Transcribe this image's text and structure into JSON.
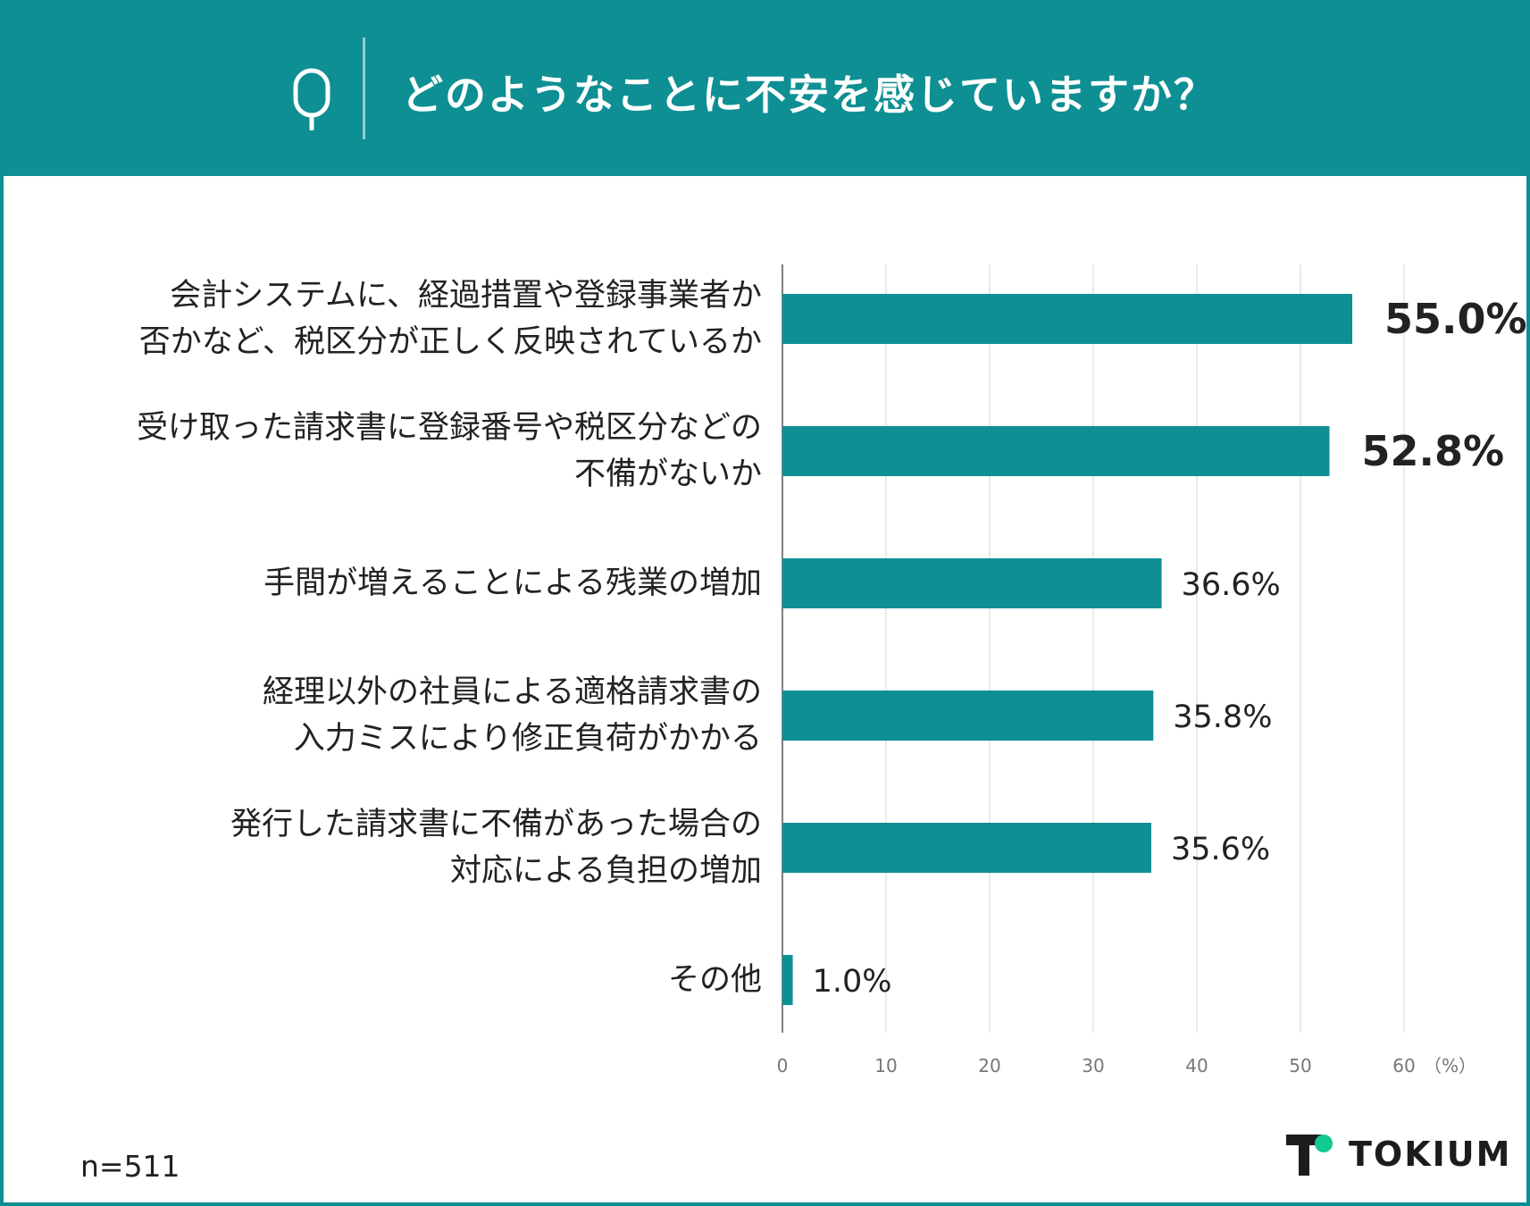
{
  "header": {
    "q_label": "Q",
    "title": "どのようなことに不安を感じていますか？"
  },
  "chart_data": {
    "type": "bar",
    "orientation": "horizontal",
    "categories": [
      "会計システムに、経過措置や登録事業者か\n否かなど、税区分が正しく反映されているか",
      "受け取った請求書に登録番号や税区分などの\n不備がないか",
      "手間が増えることによる残業の増加",
      "経理以外の社員による適格請求書の\n入力ミスにより修正負荷がかかる",
      "発行した請求書に不備があった場合の\n対応による負担の増加",
      "その他"
    ],
    "values": [
      55.0,
      52.8,
      36.6,
      35.8,
      35.6,
      1.0
    ],
    "value_labels": [
      "55.0%",
      "52.8%",
      "36.6%",
      "35.8%",
      "35.6%",
      "1.0%"
    ],
    "highlighted": [
      true,
      true,
      false,
      false,
      false,
      false
    ],
    "xlim": [
      0,
      60
    ],
    "xticks": [
      0,
      10,
      20,
      30,
      40,
      50,
      60
    ],
    "x_unit": "（%）",
    "grid": true,
    "bar_color": "#0E8F94"
  },
  "footer": {
    "sample_size": "n=511",
    "brand": "TOKIUM"
  },
  "colors": {
    "accent": "#0E8F94",
    "logo_green": "#12C98F",
    "text": "#222222"
  }
}
